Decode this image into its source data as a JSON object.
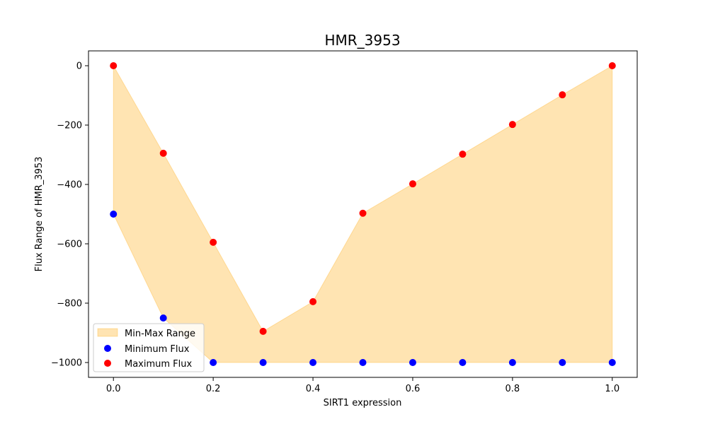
{
  "chart_data": {
    "type": "scatter",
    "title": "HMR_3953",
    "xlabel": "SIRT1 expression",
    "ylabel": "Flux Range of HMR_3953",
    "xlim": [
      -0.05,
      1.05
    ],
    "ylim": [
      -1050,
      50
    ],
    "x_ticks": [
      0.0,
      0.2,
      0.4,
      0.6,
      0.8,
      1.0
    ],
    "x_tick_labels": [
      "0.0",
      "0.2",
      "0.4",
      "0.6",
      "0.8",
      "1.0"
    ],
    "y_ticks": [
      0,
      -200,
      -400,
      -600,
      -800,
      -1000
    ],
    "y_tick_labels": [
      "0",
      "−200",
      "−400",
      "−600",
      "−800",
      "−1000"
    ],
    "x": [
      0.0,
      0.1,
      0.2,
      0.3,
      0.4,
      0.5,
      0.6,
      0.7,
      0.8,
      0.9,
      1.0
    ],
    "series": [
      {
        "name": "Minimum Flux",
        "type": "scatter",
        "color": "#0000ff",
        "values": [
          -500,
          -850,
          -1000,
          -1000,
          -1000,
          -1000,
          -1000,
          -1000,
          -1000,
          -1000,
          -1000
        ]
      },
      {
        "name": "Maximum Flux",
        "type": "scatter",
        "color": "#ff0000",
        "values": [
          0,
          -295,
          -595,
          -895,
          -795,
          -497,
          -398,
          -298,
          -198,
          -98,
          0
        ]
      }
    ],
    "fill": {
      "name": "Min-Max Range",
      "color": "#ffa500",
      "alpha": 0.3
    },
    "legend": {
      "position": "lower-left",
      "entries": [
        "Min-Max Range",
        "Minimum Flux",
        "Maximum Flux"
      ]
    },
    "grid": false
  }
}
